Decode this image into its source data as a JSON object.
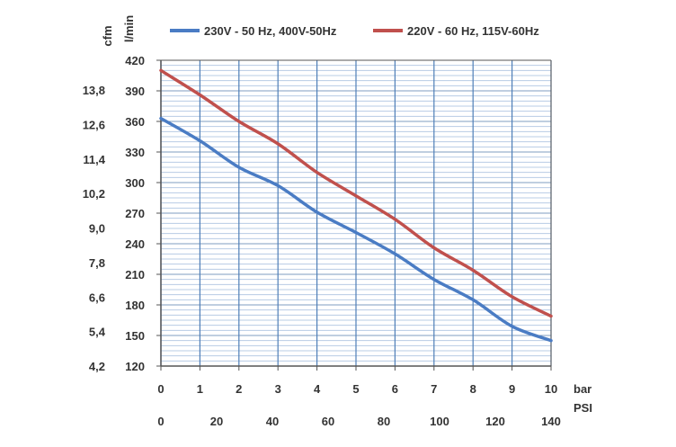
{
  "chart_data": {
    "type": "line",
    "y_unit_primary": "l/min",
    "y_unit_secondary": "cfm",
    "x_unit_primary": "bar",
    "x_unit_secondary": "PSI",
    "x_ticks_bar": [
      "0",
      "1",
      "2",
      "3",
      "4",
      "5",
      "6",
      "7",
      "8",
      "9",
      "10"
    ],
    "x_ticks_psi": [
      "0",
      "20",
      "40",
      "60",
      "80",
      "100",
      "120",
      "140"
    ],
    "y_ticks_lmin": [
      "120",
      "150",
      "180",
      "210",
      "240",
      "270",
      "300",
      "330",
      "360",
      "390",
      "420"
    ],
    "y_ticks_cfm": [
      "4,2",
      "5,4",
      "6,6",
      "7,8",
      "9,0",
      "10,2",
      "11,4",
      "12,6",
      "13,8"
    ],
    "xlim": [
      0,
      10
    ],
    "ylim": [
      120,
      420
    ],
    "grid": true,
    "legend_position": "top",
    "series": [
      {
        "name": "230V - 50 Hz, 400V-50Hz",
        "color": "#4a7cc4",
        "x": [
          0,
          1,
          2,
          3,
          4,
          5,
          6,
          7,
          8,
          9,
          10
        ],
        "y": [
          363,
          341,
          315,
          297,
          271,
          251,
          230,
          205,
          185,
          159,
          145
        ]
      },
      {
        "name": "220V - 60 Hz, 115V-60Hz",
        "color": "#c0504d",
        "x": [
          0,
          1,
          2,
          3,
          4,
          5,
          6,
          7,
          8,
          9,
          10
        ],
        "y": [
          410,
          386,
          360,
          338,
          310,
          287,
          264,
          236,
          214,
          188,
          169
        ]
      }
    ]
  }
}
